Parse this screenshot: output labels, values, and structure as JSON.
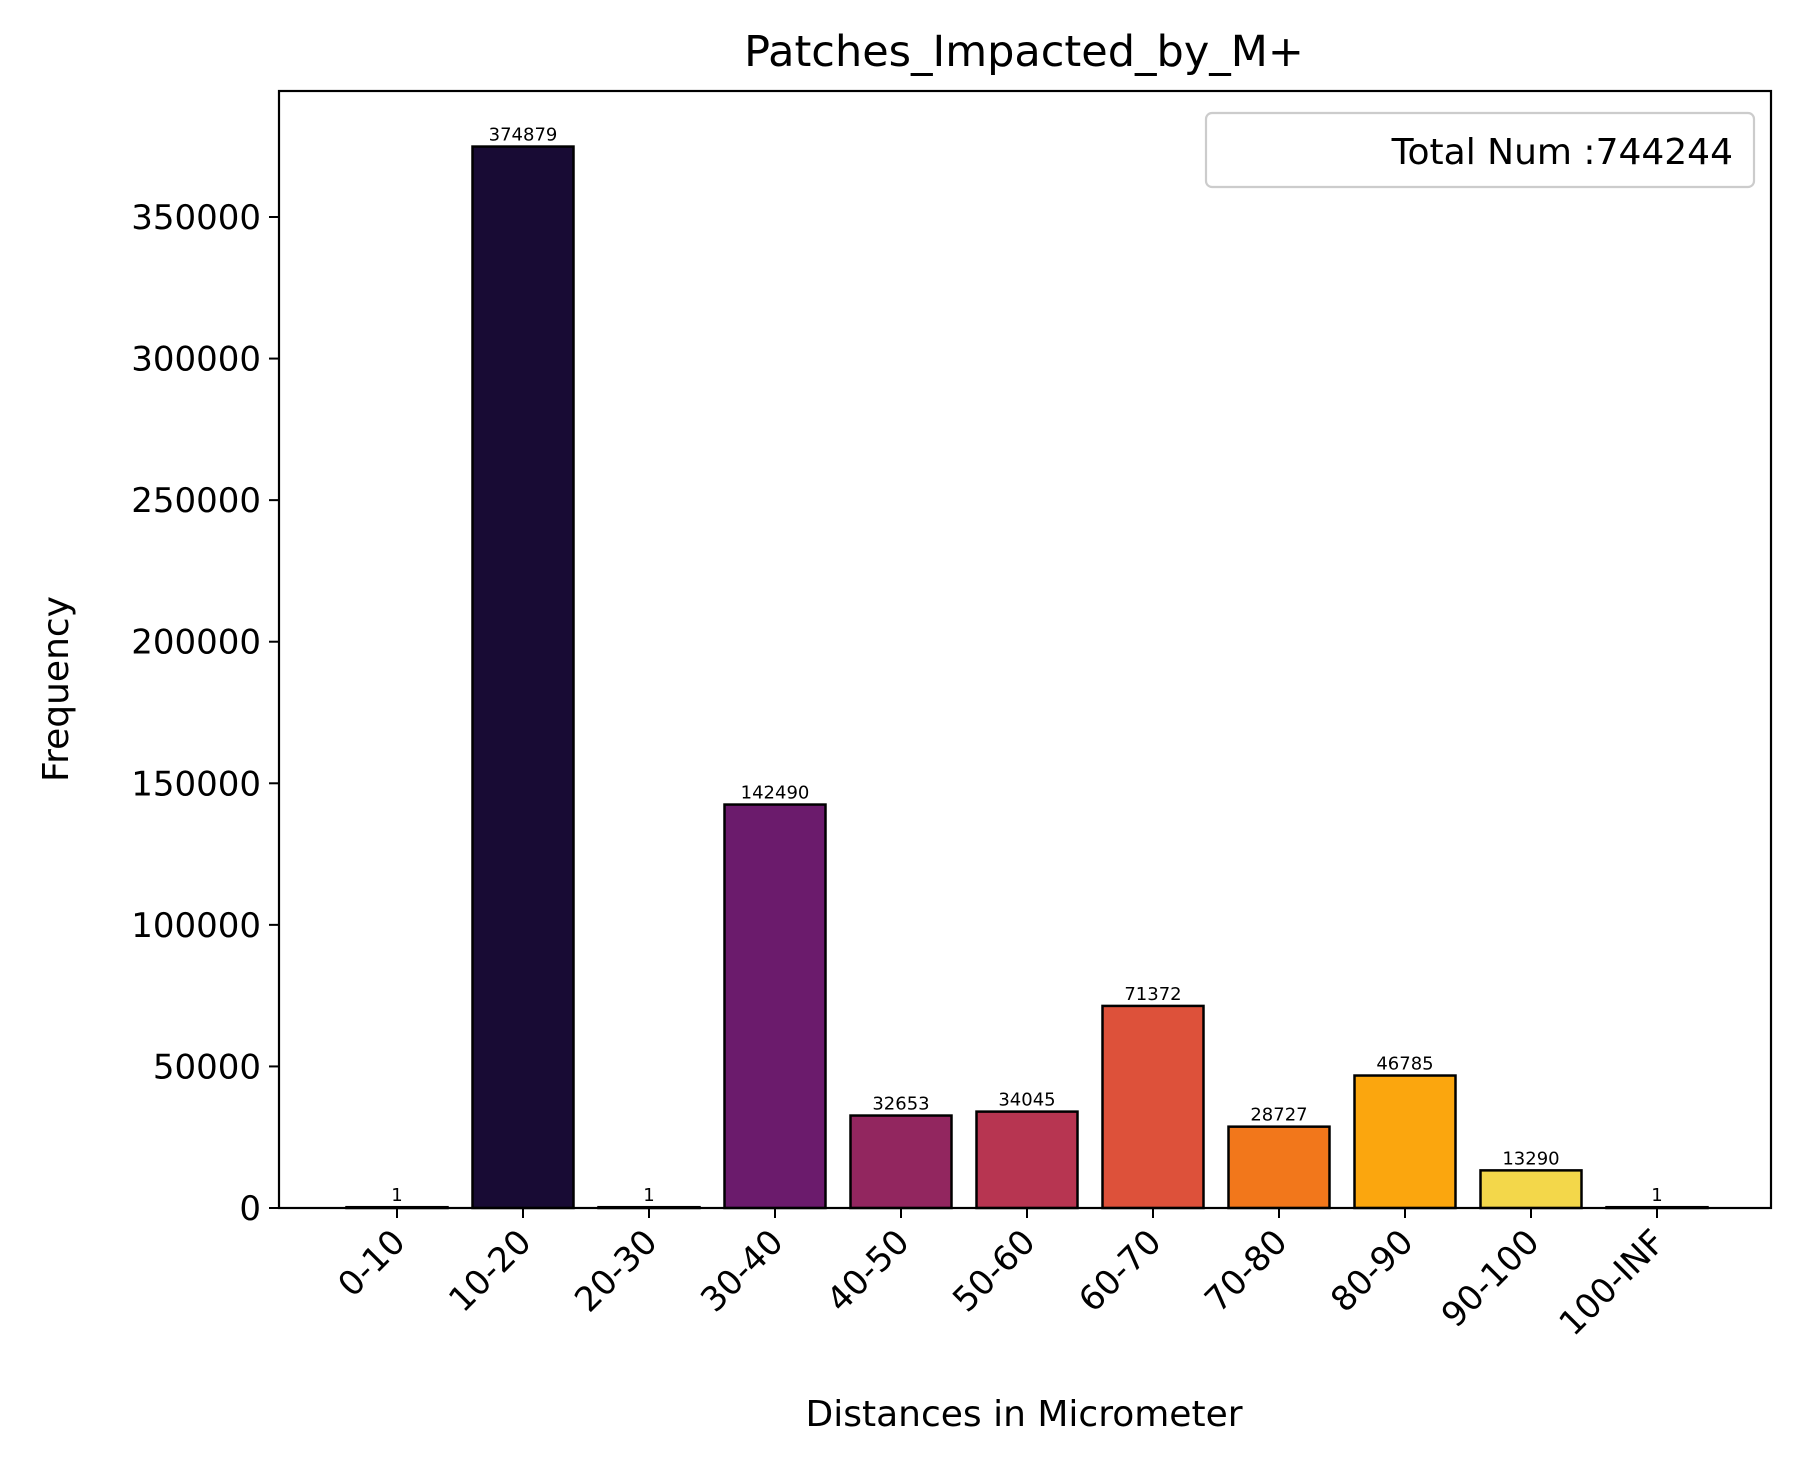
{
  "chart_data": {
    "type": "bar",
    "title": "Patches_Impacted_by_M+",
    "xlabel": "Distances in Micrometer",
    "ylabel": "Frequency",
    "categories": [
      "0-10",
      "10-20",
      "20-30",
      "30-40",
      "40-50",
      "50-60",
      "60-70",
      "70-80",
      "80-90",
      "90-100",
      "100-INF"
    ],
    "values": [
      1,
      374879,
      1,
      142490,
      32653,
      34045,
      71372,
      28727,
      46785,
      13290,
      1
    ],
    "value_labels": [
      "1",
      "374879",
      "1",
      "142490",
      "32653",
      "34045",
      "71372",
      "28727",
      "46785",
      "13290",
      "1"
    ],
    "colors": [
      "#000004",
      "#180b34",
      "#3b0a5d",
      "#6b1b6c",
      "#92265f",
      "#b73551",
      "#dd513a",
      "#f2771b",
      "#fba60e",
      "#f3d74a",
      "#fcffa4"
    ],
    "yticks": [
      0,
      50000,
      100000,
      150000,
      200000,
      250000,
      300000,
      350000
    ],
    "ytick_labels": [
      "0",
      "50000",
      "100000",
      "150000",
      "200000",
      "250000",
      "300000",
      "350000"
    ],
    "ylim": [
      0,
      393623
    ],
    "legend": {
      "text": "Total Num :744244",
      "placement": "top-right"
    },
    "grid": false
  }
}
